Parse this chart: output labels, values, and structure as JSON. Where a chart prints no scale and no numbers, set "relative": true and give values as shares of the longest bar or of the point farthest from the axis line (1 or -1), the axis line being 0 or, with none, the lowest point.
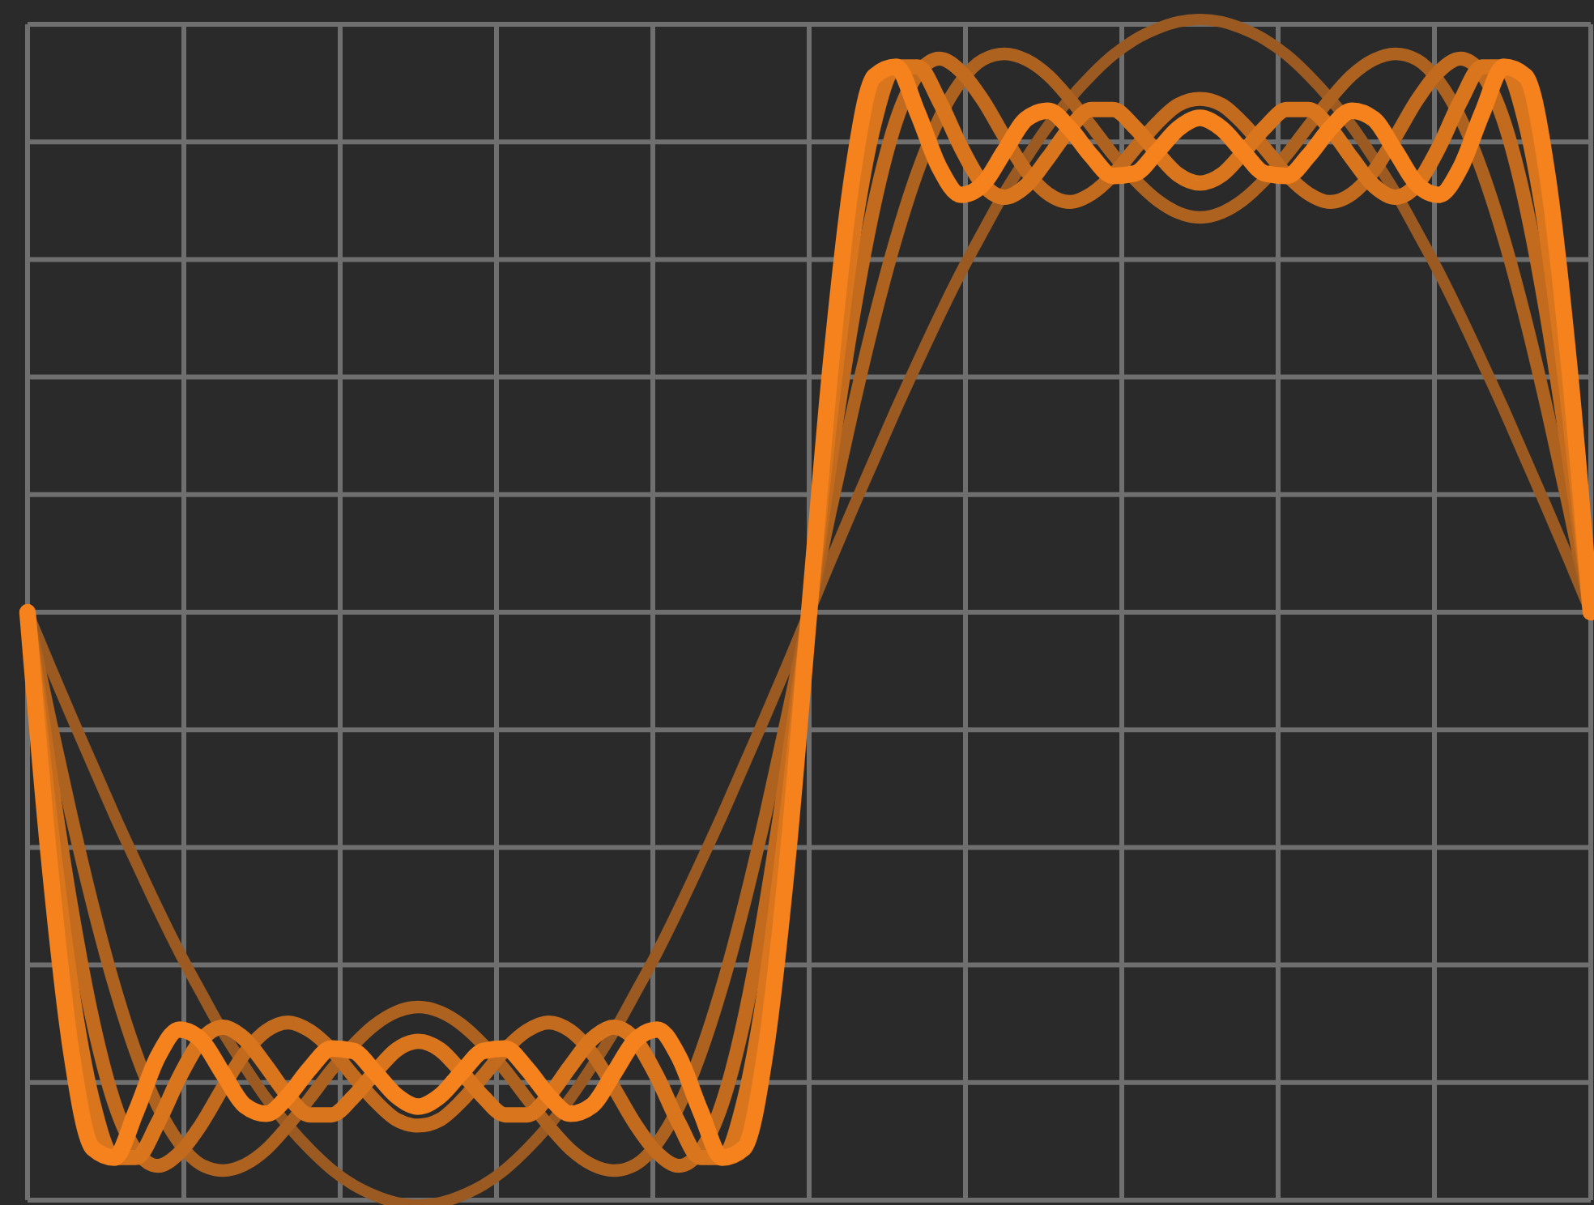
{
  "chart_data": {
    "type": "line",
    "relative": true,
    "grid": true,
    "marker": "none",
    "line_style": "solid",
    "categories": [
      null,
      null,
      null,
      null,
      null,
      null,
      null,
      null,
      null,
      null,
      null,
      null,
      null,
      null,
      null,
      null,
      null,
      null,
      null,
      null,
      null,
      null,
      null,
      null,
      null,
      null,
      null,
      null,
      null,
      null,
      null,
      null,
      null,
      null,
      null,
      null,
      null,
      null,
      null,
      null,
      null,
      null,
      null,
      null,
      null,
      null,
      null,
      null,
      null,
      null,
      null,
      null,
      null,
      null,
      null,
      null,
      null,
      null,
      null,
      null,
      null,
      null,
      null,
      null,
      null,
      null,
      null,
      null,
      null,
      null,
      null,
      null,
      null
    ],
    "series": [
      {
        "color": "#9a5a22",
        "values": [
          0.5,
          0.456,
          0.413,
          0.371,
          0.329,
          0.289,
          0.25,
          0.213,
          0.179,
          0.146,
          0.117,
          0.09,
          0.067,
          0.047,
          0.03,
          0.017,
          0.008,
          0.002,
          0,
          0.002,
          0.008,
          0.017,
          0.03,
          0.047,
          0.067,
          0.09,
          0.117,
          0.146,
          0.179,
          0.213,
          0.25,
          0.289,
          0.329,
          0.371,
          0.413,
          0.456,
          0.5,
          0.544,
          0.587,
          0.629,
          0.671,
          0.711,
          0.75,
          0.787,
          0.821,
          0.854,
          0.883,
          0.91,
          0.933,
          0.953,
          0.97,
          0.983,
          0.992,
          0.998,
          1,
          0.998,
          0.992,
          0.983,
          0.97,
          0.953,
          0.933,
          0.91,
          0.883,
          0.854,
          0.821,
          0.787,
          0.75,
          0.711,
          0.671,
          0.629,
          0.587,
          0.544,
          0.5
        ]
      },
      {
        "color": "#ad621f",
        "values": [
          0.5,
          0.413,
          0.33,
          0.253,
          0.185,
          0.128,
          0.083,
          0.052,
          0.034,
          0.029,
          0.034,
          0.047,
          0.067,
          0.09,
          0.114,
          0.135,
          0.152,
          0.163,
          0.167,
          0.163,
          0.152,
          0.135,
          0.114,
          0.09,
          0.067,
          0.047,
          0.034,
          0.029,
          0.034,
          0.052,
          0.083,
          0.128,
          0.185,
          0.253,
          0.33,
          0.413,
          0.5,
          0.587,
          0.67,
          0.747,
          0.815,
          0.872,
          0.917,
          0.948,
          0.966,
          0.971,
          0.966,
          0.953,
          0.933,
          0.91,
          0.886,
          0.865,
          0.848,
          0.837,
          0.833,
          0.837,
          0.848,
          0.865,
          0.886,
          0.91,
          0.933,
          0.953,
          0.966,
          0.971,
          0.966,
          0.948,
          0.917,
          0.872,
          0.815,
          0.747,
          0.67,
          0.587,
          0.5
        ]
      },
      {
        "color": "#c26b1e",
        "values": [
          0.5,
          0.371,
          0.253,
          0.156,
          0.086,
          0.046,
          0.033,
          0.044,
          0.068,
          0.099,
          0.128,
          0.147,
          0.154,
          0.147,
          0.131,
          0.109,
          0.088,
          0.072,
          0.067,
          0.072,
          0.088,
          0.109,
          0.131,
          0.147,
          0.154,
          0.147,
          0.128,
          0.099,
          0.068,
          0.044,
          0.033,
          0.046,
          0.086,
          0.156,
          0.253,
          0.371,
          0.5,
          0.629,
          0.747,
          0.844,
          0.914,
          0.954,
          0.967,
          0.956,
          0.932,
          0.901,
          0.872,
          0.853,
          0.846,
          0.853,
          0.869,
          0.891,
          0.912,
          0.928,
          0.933,
          0.928,
          0.912,
          0.891,
          0.869,
          0.853,
          0.846,
          0.853,
          0.872,
          0.901,
          0.932,
          0.956,
          0.967,
          0.954,
          0.914,
          0.844,
          0.747,
          0.629,
          0.5
        ]
      },
      {
        "color": "#d9761d",
        "values": [
          0.5,
          0.33,
          0.186,
          0.087,
          0.04,
          0.04,
          0.069,
          0.108,
          0.139,
          0.15,
          0.14,
          0.117,
          0.092,
          0.076,
          0.076,
          0.091,
          0.112,
          0.131,
          0.138,
          0.131,
          0.112,
          0.091,
          0.076,
          0.076,
          0.092,
          0.117,
          0.14,
          0.15,
          0.139,
          0.108,
          0.069,
          0.04,
          0.04,
          0.087,
          0.186,
          0.33,
          0.5,
          0.67,
          0.814,
          0.913,
          0.96,
          0.96,
          0.931,
          0.892,
          0.861,
          0.85,
          0.86,
          0.883,
          0.908,
          0.924,
          0.924,
          0.909,
          0.888,
          0.869,
          0.862,
          0.869,
          0.888,
          0.909,
          0.924,
          0.924,
          0.908,
          0.883,
          0.86,
          0.85,
          0.861,
          0.892,
          0.931,
          0.96,
          0.96,
          0.913,
          0.814,
          0.67,
          0.5
        ]
      },
      {
        "color": "#f5821c",
        "values": [
          0.5,
          0.291,
          0.131,
          0.048,
          0.04,
          0.079,
          0.125,
          0.148,
          0.139,
          0.111,
          0.084,
          0.077,
          0.092,
          0.115,
          0.132,
          0.13,
          0.112,
          0.092,
          0.083,
          0.092,
          0.112,
          0.13,
          0.132,
          0.115,
          0.092,
          0.077,
          0.084,
          0.111,
          0.139,
          0.148,
          0.125,
          0.079,
          0.04,
          0.048,
          0.131,
          0.291,
          0.5,
          0.709,
          0.869,
          0.952,
          0.96,
          0.921,
          0.875,
          0.852,
          0.861,
          0.889,
          0.916,
          0.923,
          0.908,
          0.885,
          0.868,
          0.87,
          0.888,
          0.908,
          0.917,
          0.908,
          0.888,
          0.87,
          0.868,
          0.885,
          0.908,
          0.923,
          0.916,
          0.889,
          0.861,
          0.852,
          0.875,
          0.921,
          0.96,
          0.952,
          0.869,
          0.709,
          0.5
        ]
      }
    ]
  }
}
